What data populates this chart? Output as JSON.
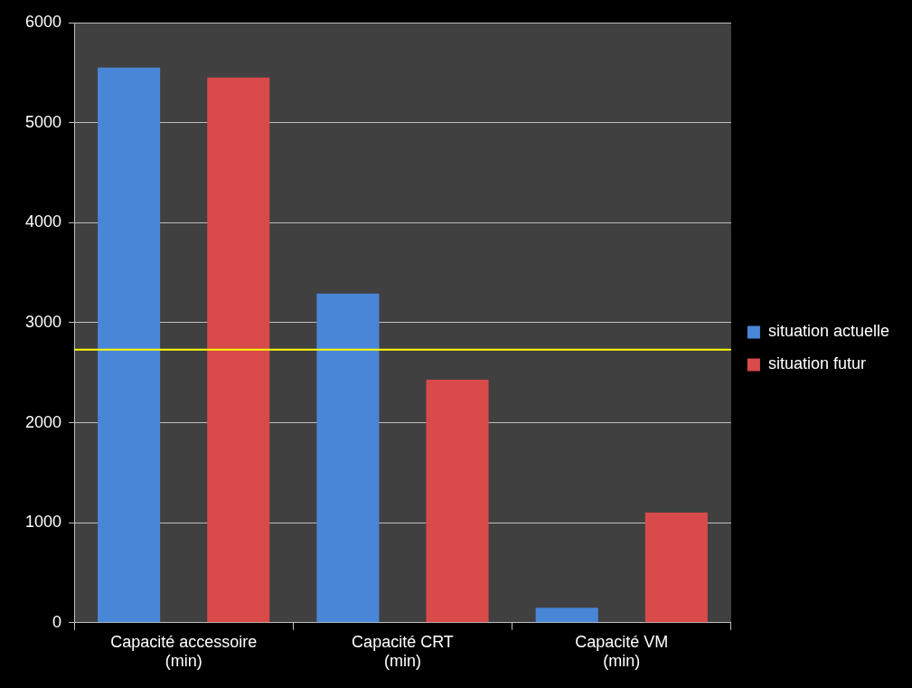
{
  "chart_data": {
    "type": "bar",
    "categories": [
      "Capacité accessoire (min)",
      "Capacité CRT (min)",
      "Capacité VM (min)"
    ],
    "series": [
      {
        "name": "situation actuelle",
        "color": "#4a86d8",
        "values": [
          5550,
          3290,
          150
        ]
      },
      {
        "name": "situation futur",
        "color": "#d94a4a",
        "values": [
          5450,
          2430,
          1100
        ]
      }
    ],
    "ylim": [
      0,
      6000
    ],
    "yticks": [
      0,
      1000,
      2000,
      3000,
      4000,
      5000,
      6000
    ],
    "grid": "y",
    "legend": "right",
    "ref_lines": [
      {
        "axis": "y",
        "value": 2730,
        "color": "#ffff00"
      }
    ]
  }
}
